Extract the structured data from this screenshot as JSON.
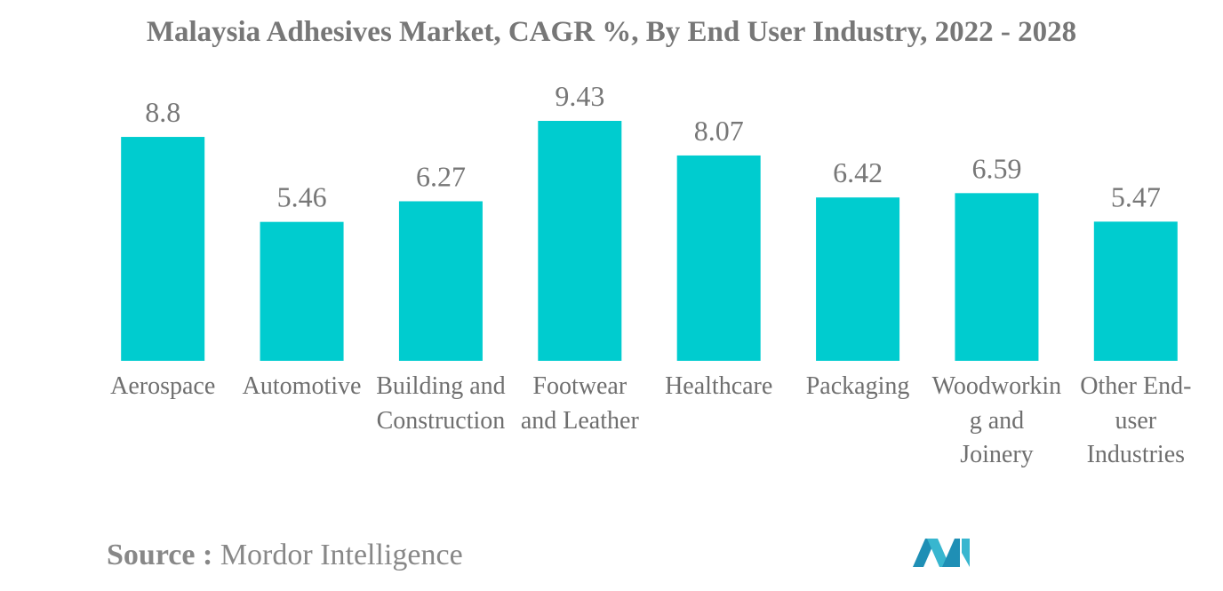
{
  "chart_data": {
    "type": "bar",
    "title": "Malaysia Adhesives Market, CAGR %, By End User Industry, 2022 - 2028",
    "categories": [
      "Aerospace",
      "Automotive",
      "Building and Construction",
      "Footwear and Leather",
      "Healthcare",
      "Packaging",
      "Woodworking and Joinery",
      "Other End-user Industries"
    ],
    "values": [
      8.8,
      5.46,
      6.27,
      9.43,
      8.07,
      6.42,
      6.59,
      5.47
    ],
    "color": "#00cccf",
    "source_label": "Source :",
    "source": "Mordor Intelligence"
  }
}
